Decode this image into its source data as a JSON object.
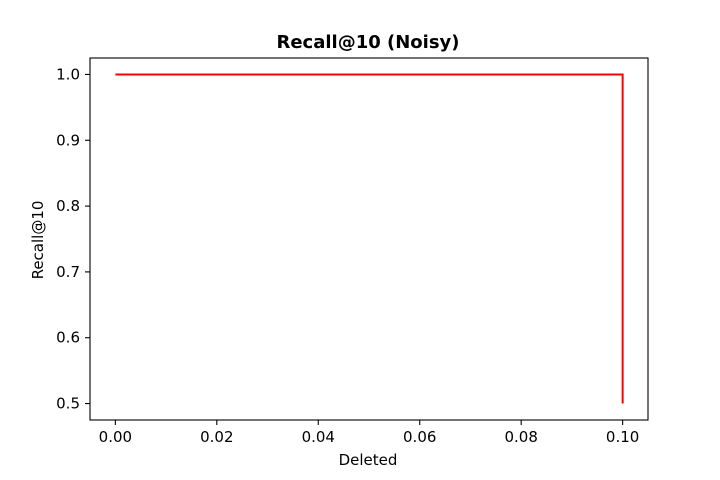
{
  "chart_data": {
    "type": "line",
    "title": "Recall@10 (Noisy)",
    "xlabel": "Deleted",
    "ylabel": "Recall@10",
    "xlim": [
      -0.005,
      0.105
    ],
    "ylim": [
      0.475,
      1.025
    ],
    "x_ticks": [
      0.0,
      0.02,
      0.04,
      0.06,
      0.08,
      0.1
    ],
    "x_tick_labels": [
      "0.00",
      "0.02",
      "0.04",
      "0.06",
      "0.08",
      "0.10"
    ],
    "y_ticks": [
      0.5,
      0.6,
      0.7,
      0.8,
      0.9,
      1.0
    ],
    "y_tick_labels": [
      "0.5",
      "0.6",
      "0.7",
      "0.8",
      "0.9",
      "1.0"
    ],
    "grid": false,
    "series": [
      {
        "color": "#ff0000",
        "x": [
          0.0,
          0.1,
          0.1
        ],
        "y": [
          1.0,
          1.0,
          0.5
        ]
      }
    ]
  }
}
